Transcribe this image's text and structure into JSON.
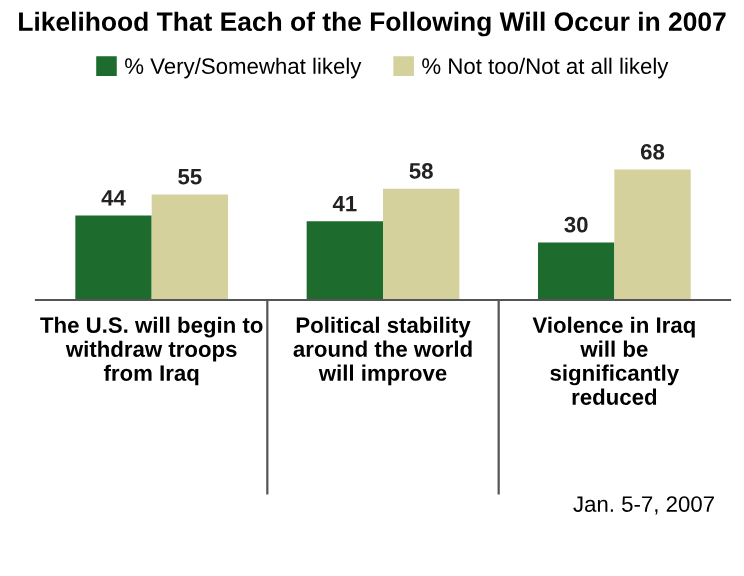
{
  "chart_data": {
    "type": "bar",
    "title": "Likelihood That Each of the Following Will Occur in 2007",
    "categories": [
      "The U.S. will begin to\nwithdraw troops\nfrom Iraq",
      "Political stability\naround the world\nwill improve",
      "Violence in Iraq\nwill be\nsignificantly\nreduced"
    ],
    "series": [
      {
        "name": "% Very/Somewhat likely",
        "color": "#1e6b2e",
        "values": [
          44,
          41,
          30
        ]
      },
      {
        "name": "% Not too/Not at all likely",
        "color": "#d4d19c",
        "values": [
          55,
          58,
          68
        ]
      }
    ],
    "data_labels": true,
    "legend": "top",
    "grid": false,
    "annotations": [
      "Jan. 5-7, 2007"
    ]
  }
}
